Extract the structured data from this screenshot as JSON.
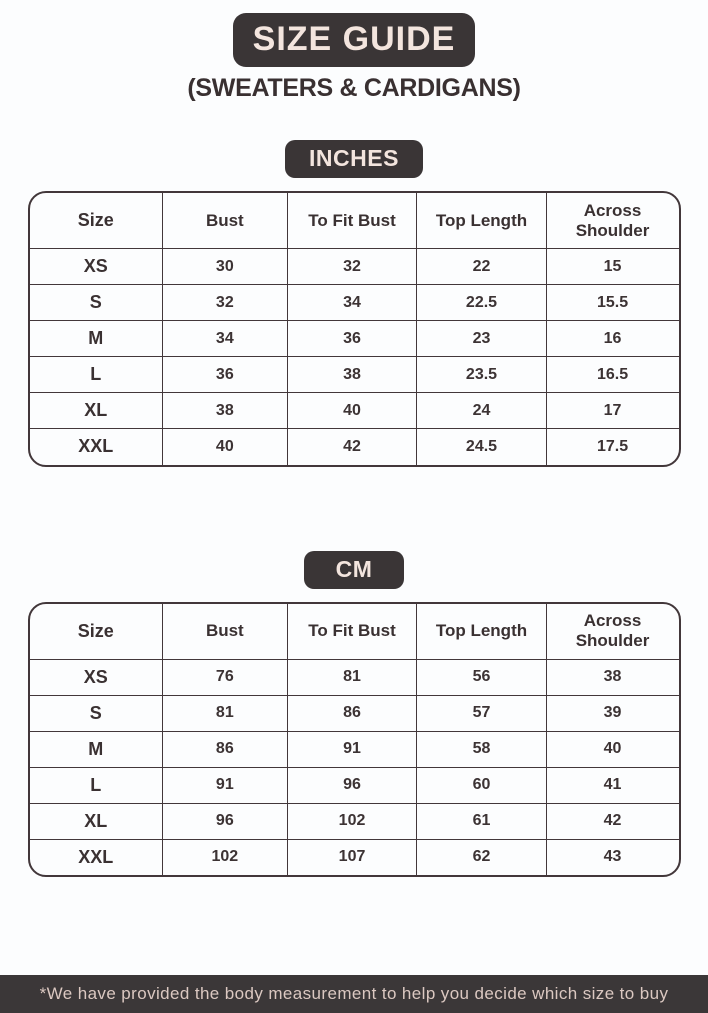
{
  "page": {
    "title": "SIZE GUIDE",
    "subtitle": "(SWEATERS & CARDIGANS)",
    "footnote": "*We have provided the body measurement to help you decide which size to buy"
  },
  "colors": {
    "badge_bg": "#3a3536",
    "badge_text": "#f3e5de",
    "page_bg": "#fcfdfe",
    "table_border": "#42373a",
    "body_text": "#3a3132",
    "footer_bg": "#3b3738",
    "footer_text": "#dbc8c1"
  },
  "tables": [
    {
      "unit_label": "INCHES",
      "columns": [
        "Size",
        "Bust",
        "To Fit Bust",
        "Top Length",
        "Across Shoulder"
      ],
      "rows": [
        [
          "XS",
          "30",
          "32",
          "22",
          "15"
        ],
        [
          "S",
          "32",
          "34",
          "22.5",
          "15.5"
        ],
        [
          "M",
          "34",
          "36",
          "23",
          "16"
        ],
        [
          "L",
          "36",
          "38",
          "23.5",
          "16.5"
        ],
        [
          "XL",
          "38",
          "40",
          "24",
          "17"
        ],
        [
          "XXL",
          "40",
          "42",
          "24.5",
          "17.5"
        ]
      ]
    },
    {
      "unit_label": "CM",
      "columns": [
        "Size",
        "Bust",
        "To Fit Bust",
        "Top Length",
        "Across Shoulder"
      ],
      "rows": [
        [
          "XS",
          "76",
          "81",
          "56",
          "38"
        ],
        [
          "S",
          "81",
          "86",
          "57",
          "39"
        ],
        [
          "M",
          "86",
          "91",
          "58",
          "40"
        ],
        [
          "L",
          "91",
          "96",
          "60",
          "41"
        ],
        [
          "XL",
          "96",
          "102",
          "61",
          "42"
        ],
        [
          "XXL",
          "102",
          "107",
          "62",
          "43"
        ]
      ]
    }
  ]
}
